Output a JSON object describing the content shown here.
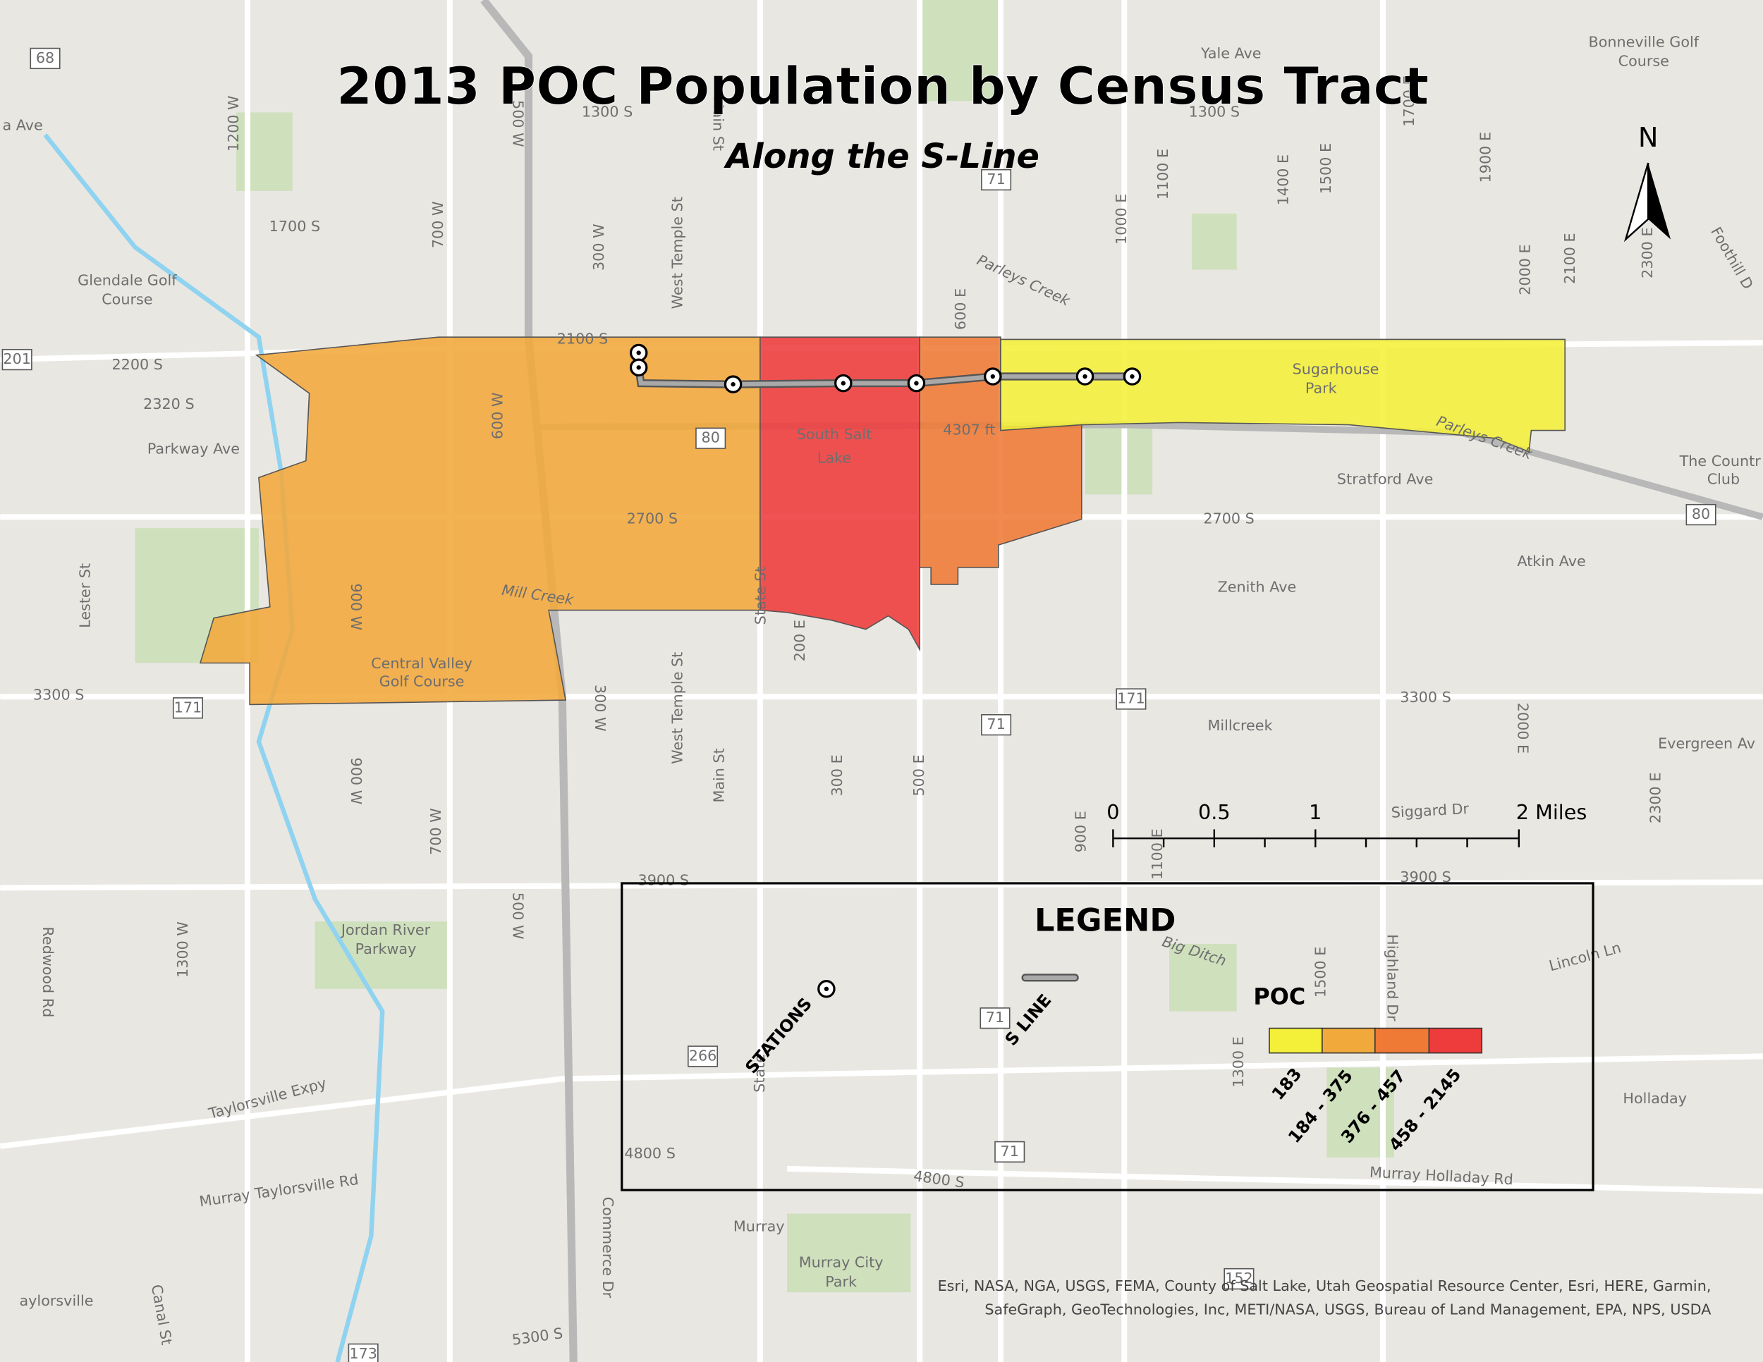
{
  "title": "2013 POC Population by Census Tract",
  "subtitle": "Along the S-Line",
  "north": "N",
  "legend": {
    "title": "LEGEND",
    "stations": "STATIONS",
    "s_line": "S LINE",
    "poc_title": "POC",
    "classes": [
      "183",
      "184 - 375",
      "376 - 457",
      "458 - 2145"
    ]
  },
  "scale_bar": [
    "0",
    "0.5",
    "1",
    "2 Miles"
  ],
  "map_labels": [
    "Yale Ave",
    "Bonneville Golf",
    "Course",
    "a Ave",
    "1300 S",
    "1300 S",
    "1700 S",
    "Glendale Golf",
    "Course",
    "2100 S",
    "2200 S",
    "2320 S",
    "Parkway Ave",
    "Stratford Ave",
    "2700 S",
    "2700 S",
    "Atkin Ave",
    "Zenith Ave",
    "Mill Creek",
    "Central Valley",
    "Golf Course",
    "3300 S",
    "3300 S",
    "Millcreek",
    "Evergreen Av",
    "Siggard Dr",
    "3900 S",
    "3900 S",
    "Jordan River",
    "Parkway",
    "Big Ditch",
    "Lincoln Ln",
    "Holladay",
    "Taylorsville Expy",
    "4800 S",
    "4800 S",
    "Murray Holladay Rd",
    "Murray Taylorsville Rd",
    "Murray",
    "Murray City",
    "Park",
    "aylorsville",
    "5300 S",
    "Sugarhouse",
    "Park",
    "The Countr",
    "Club",
    "South Salt",
    "Lake",
    "4307 ft",
    "Parleys Creek",
    "Parleys Creek",
    "1200 W",
    "700 W",
    "500 W",
    "300 W",
    "West Temple St",
    "Main St",
    "600 E",
    "1000 E",
    "1100 E",
    "1400 E",
    "1500 E",
    "1700 E",
    "1900 E",
    "2000 E",
    "2100 E",
    "2300 E",
    "Foothill D",
    "Lester St",
    "900 W",
    "600 W",
    "State St",
    "200 E",
    "West Temple St",
    "Main St",
    "300 W",
    "300 E",
    "500 E",
    "900 E",
    "1100 E",
    "2000 E",
    "2300 E",
    "900 W",
    "700 W",
    "1300 W",
    "500 W",
    "Redwood Rd",
    "Commerce Dr",
    "Canal St",
    "1300 E",
    "1500 E",
    "Highland Dr",
    "State"
  ],
  "shields": [
    "68",
    "201",
    "171",
    "71",
    "80",
    "266",
    "71",
    "171",
    "71",
    "71",
    "80",
    "152",
    "173"
  ],
  "attribution": [
    "Esri, NASA, NGA, USGS, FEMA, County of Salt Lake, Utah Geospatial Resource Center, Esri, HERE, Garmin,",
    "SafeGraph, GeoTechnologies, Inc, METI/NASA, USGS, Bureau of Land Management, EPA, NPS, USDA"
  ]
}
